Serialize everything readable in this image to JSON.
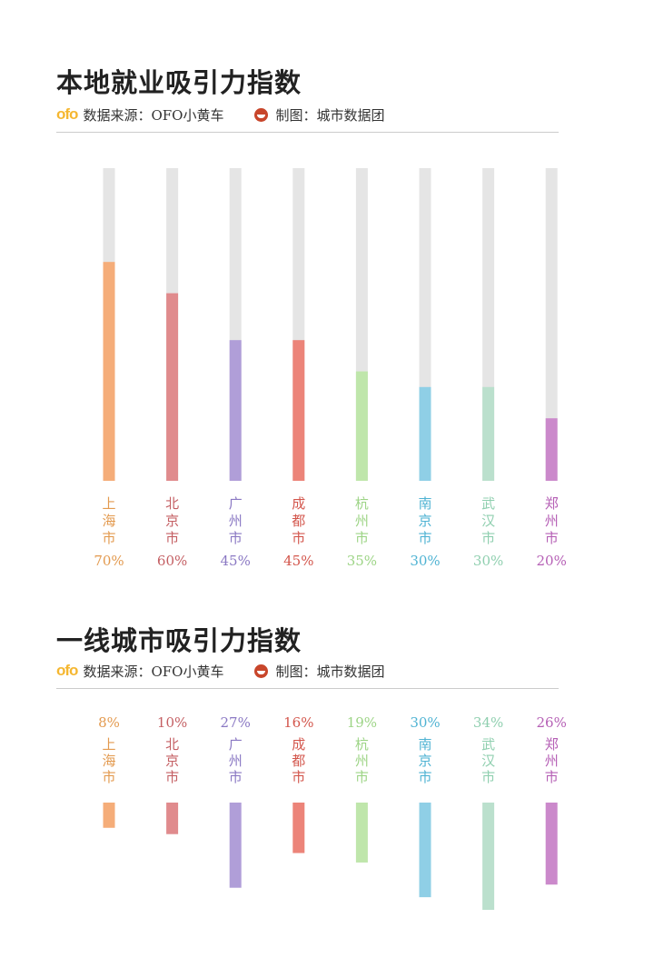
{
  "sections": [
    {
      "title": "本地就业吸引力指数",
      "source": {
        "logo": "ofo",
        "label": "数据来源：OFO小黄车"
      },
      "maker": {
        "icon": "city-data-group-logo-icon",
        "label": "制图：城市数据团"
      }
    },
    {
      "title": "一线城市吸引力指数",
      "source": {
        "logo": "ofo",
        "label": "数据来源：OFO小黄车"
      },
      "maker": {
        "icon": "city-data-group-logo-icon",
        "label": "制图：城市数据团"
      }
    }
  ],
  "chart_data": [
    {
      "type": "bar",
      "title": "本地就业吸引力指数",
      "categories": [
        "上海市",
        "北京市",
        "广州市",
        "成都市",
        "杭州市",
        "南京市",
        "武汉市",
        "郑州市"
      ],
      "values": [
        70,
        60,
        45,
        45,
        35,
        30,
        30,
        20
      ],
      "value_labels": [
        "70%",
        "60%",
        "45%",
        "45%",
        "35%",
        "30%",
        "30%",
        "20%"
      ],
      "ylim": [
        0,
        100
      ],
      "orientation": "vertical-up",
      "background_track": true,
      "colors": [
        "#f5ad79",
        "#e08b8d",
        "#b09ed8",
        "#ec8479",
        "#bfe6ab",
        "#8fcfe6",
        "#bbe0cd",
        "#cb89cb"
      ],
      "label_colors": [
        "#e39a4f",
        "#c45f63",
        "#8a78c3",
        "#d3564c",
        "#9dd486",
        "#4fb3d3",
        "#8fcfaf",
        "#b55fb5"
      ],
      "grid": false
    },
    {
      "type": "bar",
      "title": "一线城市吸引力指数",
      "categories": [
        "上海市",
        "北京市",
        "广州市",
        "成都市",
        "杭州市",
        "南京市",
        "武汉市",
        "郑州市"
      ],
      "values": [
        8,
        10,
        27,
        16,
        19,
        30,
        34,
        26
      ],
      "value_labels": [
        "8%",
        "10%",
        "27%",
        "16%",
        "19%",
        "30%",
        "34%",
        "26%"
      ],
      "orientation": "vertical-down",
      "background_track": false,
      "colors": [
        "#f5ad79",
        "#e08b8d",
        "#b09ed8",
        "#ec8479",
        "#bfe6ab",
        "#8fcfe6",
        "#bbe0cd",
        "#cb89cb"
      ],
      "label_colors": [
        "#e39a4f",
        "#c45f63",
        "#8a78c3",
        "#d3564c",
        "#9dd486",
        "#4fb3d3",
        "#8fcfaf",
        "#b55fb5"
      ],
      "grid": false
    }
  ]
}
